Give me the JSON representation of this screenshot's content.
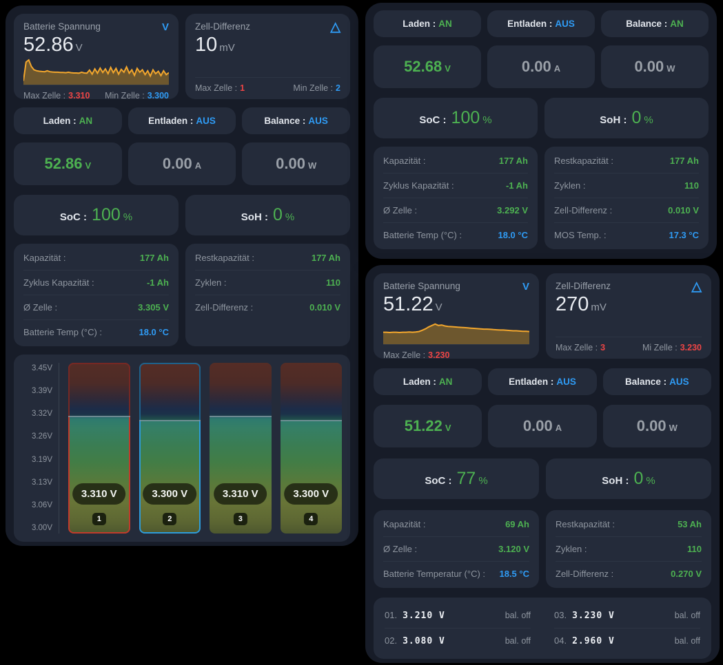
{
  "theme": {
    "background": "#000000",
    "panel_bg": "#171c28",
    "card_bg": "#242b3a",
    "green": "#4db151",
    "blue": "#2f9bf4",
    "red": "#ee4545",
    "orange_line": "#f3a72d"
  },
  "panels": {
    "left": {
      "voltage_card": {
        "title": "Batterie Spannung",
        "value": "52.86",
        "unit": "V",
        "icon": "V",
        "spark": [
          0.1,
          0.88,
          0.97,
          0.7,
          0.56,
          0.52,
          0.5,
          0.49,
          0.48,
          0.52,
          0.48,
          0.47,
          0.46,
          0.46,
          0.45,
          0.45,
          0.44,
          0.46,
          0.44,
          0.43,
          0.43,
          0.42,
          0.46,
          0.43,
          0.42,
          0.55,
          0.38,
          0.6,
          0.42,
          0.63,
          0.45,
          0.6,
          0.4,
          0.66,
          0.44,
          0.62,
          0.38,
          0.58,
          0.46,
          0.68,
          0.42,
          0.56,
          0.33,
          0.62,
          0.46,
          0.56,
          0.36,
          0.52,
          0.3,
          0.56,
          0.4,
          0.5,
          0.32,
          0.52,
          0.36,
          0.44
        ],
        "foot": [
          {
            "label": "Max Zelle :",
            "value": "3.310",
            "color": "red"
          },
          {
            "label": "Min Zelle :",
            "value": "3.300",
            "color": "blue"
          }
        ]
      },
      "diff_card": {
        "title": "Zell-Differenz",
        "value": "10",
        "unit": "mV",
        "icon": "△",
        "foot": [
          {
            "label": "Max Zelle :",
            "value": "1",
            "color": "red"
          },
          {
            "label": "Min Zelle :",
            "value": "2",
            "color": "blue"
          }
        ]
      },
      "chips": [
        {
          "label": "Laden :",
          "value": "AN",
          "color": "green"
        },
        {
          "label": "Entladen :",
          "value": "AUS",
          "color": "blue"
        },
        {
          "label": "Balance :",
          "value": "AUS",
          "color": "blue"
        }
      ],
      "measures": [
        {
          "value": "52.86",
          "unit": "V",
          "color": "green"
        },
        {
          "value": "0.00",
          "unit": "A",
          "color": "gray"
        },
        {
          "value": "0.00",
          "unit": "W",
          "color": "gray"
        }
      ],
      "stats": [
        {
          "label": "SoC :",
          "value": "100",
          "unit": "%"
        },
        {
          "label": "SoH :",
          "value": "0",
          "unit": "%"
        }
      ],
      "info_left": {
        "rows": [
          {
            "label": "Kapazität :",
            "value": "177 Ah",
            "color": "green"
          },
          {
            "label": "Zyklus Kapazität :",
            "value": "-1 Ah",
            "color": "green"
          },
          {
            "label": "Ø Zelle :",
            "value": "3.305 V",
            "color": "green"
          },
          {
            "label": "Batterie Temp (°C) :",
            "value": "18.0 °C",
            "color": "blue"
          }
        ]
      },
      "info_right": {
        "rows": [
          {
            "label": "Restkapazität :",
            "value": "177 Ah",
            "color": "green"
          },
          {
            "label": "Zyklen :",
            "value": "110",
            "color": "green"
          },
          {
            "label": "Zell-Differenz :",
            "value": "0.010 V",
            "color": "green"
          }
        ]
      },
      "cells_chart": {
        "min": 3.0,
        "max": 3.45,
        "axis": [
          "3.45V",
          "3.39V",
          "3.32V",
          "3.26V",
          "3.19V",
          "3.13V",
          "3.06V",
          "3.00V"
        ],
        "cells": [
          {
            "num": "1",
            "value": 3.31,
            "label": "3.310 V",
            "border": "red"
          },
          {
            "num": "2",
            "value": 3.3,
            "label": "3.300 V",
            "border": "blue"
          },
          {
            "num": "3",
            "value": 3.31,
            "label": "3.310 V",
            "border": ""
          },
          {
            "num": "4",
            "value": 3.3,
            "label": "3.300 V",
            "border": ""
          }
        ]
      }
    },
    "top_right": {
      "chips": [
        {
          "label": "Laden :",
          "value": "AN",
          "color": "green"
        },
        {
          "label": "Entladen :",
          "value": "AUS",
          "color": "blue"
        },
        {
          "label": "Balance :",
          "value": "AN",
          "color": "green"
        }
      ],
      "measures": [
        {
          "value": "52.68",
          "unit": "V",
          "color": "green"
        },
        {
          "value": "0.00",
          "unit": "A",
          "color": "gray"
        },
        {
          "value": "0.00",
          "unit": "W",
          "color": "gray"
        }
      ],
      "stats": [
        {
          "label": "SoC :",
          "value": "100",
          "unit": "%"
        },
        {
          "label": "SoH :",
          "value": "0",
          "unit": "%"
        }
      ],
      "info_left": {
        "rows": [
          {
            "label": "Kapazität :",
            "value": "177 Ah",
            "color": "green"
          },
          {
            "label": "Zyklus Kapazität :",
            "value": "-1 Ah",
            "color": "green"
          },
          {
            "label": "Ø Zelle :",
            "value": "3.292 V",
            "color": "green"
          },
          {
            "label": "Batterie Temp (°C) :",
            "value": "18.0 °C",
            "color": "blue"
          }
        ]
      },
      "info_right": {
        "rows": [
          {
            "label": "Restkapazität :",
            "value": "177 Ah",
            "color": "green"
          },
          {
            "label": "Zyklen :",
            "value": "110",
            "color": "green"
          },
          {
            "label": "Zell-Differenz :",
            "value": "0.010 V",
            "color": "green"
          },
          {
            "label": "MOS Temp. :",
            "value": "17.3 °C",
            "color": "blue"
          }
        ]
      }
    },
    "bottom_right": {
      "voltage_card": {
        "title": "Batterie Spannung",
        "value": "51.22",
        "unit": "V",
        "icon": "V",
        "spark": [
          0.44,
          0.44,
          0.43,
          0.44,
          0.44,
          0.43,
          0.44,
          0.44,
          0.45,
          0.44,
          0.45,
          0.47,
          0.52,
          0.58,
          0.66,
          0.72,
          0.78,
          0.72,
          0.74,
          0.7,
          0.68,
          0.67,
          0.66,
          0.65,
          0.64,
          0.63,
          0.62,
          0.61,
          0.6,
          0.59,
          0.58,
          0.57,
          0.57,
          0.56,
          0.55,
          0.54,
          0.53,
          0.53,
          0.52,
          0.51,
          0.5,
          0.5,
          0.49,
          0.48,
          0.48,
          0.47
        ],
        "foot": [
          {
            "label": "Max Zelle :",
            "value": "3.230",
            "color": "red"
          }
        ]
      },
      "diff_card": {
        "title": "Zell-Differenz",
        "value": "270",
        "unit": "mV",
        "icon": "△",
        "foot": [
          {
            "label": "Max Zelle :",
            "value": "3",
            "color": "red"
          },
          {
            "label": "Mi  Zelle :",
            "value": "3.230",
            "color": "red"
          }
        ]
      },
      "chips": [
        {
          "label": "Laden :",
          "value": "AN",
          "color": "green"
        },
        {
          "label": "Entladen :",
          "value": "AUS",
          "color": "blue"
        },
        {
          "label": "Balance :",
          "value": "AUS",
          "color": "blue"
        }
      ],
      "measures": [
        {
          "value": "51.22",
          "unit": "V",
          "color": "green"
        },
        {
          "value": "0.00",
          "unit": "A",
          "color": "gray"
        },
        {
          "value": "0.00",
          "unit": "W",
          "color": "gray"
        }
      ],
      "stats": [
        {
          "label": "SoC :",
          "value": "77",
          "unit": "%"
        },
        {
          "label": "SoH :",
          "value": "0",
          "unit": "%"
        }
      ],
      "info_left": {
        "rows": [
          {
            "label": "Kapazität :",
            "value": "69 Ah",
            "color": "green"
          },
          {
            "label": "Ø Zelle :",
            "value": "3.120 V",
            "color": "green"
          },
          {
            "label": "Batterie Temperatur (°C) :",
            "value": "18.5 °C",
            "color": "blue"
          }
        ]
      },
      "info_right": {
        "rows": [
          {
            "label": "Restkapazität :",
            "value": "53 Ah",
            "color": "green"
          },
          {
            "label": "Zyklen :",
            "value": "110",
            "color": "green"
          },
          {
            "label": "Zell-Differenz :",
            "value": "0.270 V",
            "color": "green"
          }
        ]
      },
      "cell_list": {
        "left": [
          {
            "num": "01.",
            "value": "3.210 V",
            "status": "bal. off"
          },
          {
            "num": "02.",
            "value": "3.080 V",
            "status": "bal. off"
          }
        ],
        "right": [
          {
            "num": "03.",
            "value": "3.230 V",
            "status": "bal. off"
          },
          {
            "num": "04.",
            "value": "2.960 V",
            "status": "bal. off"
          }
        ]
      }
    }
  },
  "chart_data": {
    "type": "bar",
    "categories": [
      "1",
      "2",
      "3",
      "4"
    ],
    "values": [
      3.31,
      3.3,
      3.31,
      3.3
    ],
    "ylim": [
      3.0,
      3.45
    ],
    "yticks": [
      "3.45V",
      "3.39V",
      "3.32V",
      "3.26V",
      "3.19V",
      "3.13V",
      "3.06V",
      "3.00V"
    ],
    "xlabel": "",
    "ylabel": ""
  }
}
